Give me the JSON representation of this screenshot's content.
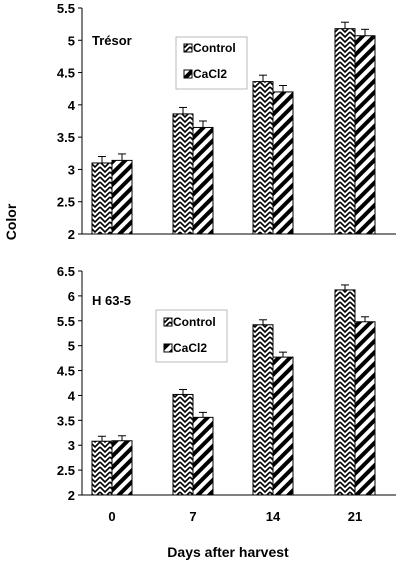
{
  "chart_data": [
    {
      "type": "bar",
      "panel_label": "Trésor",
      "categories": [
        "0",
        "7",
        "14",
        "21"
      ],
      "series": [
        {
          "name": "Control",
          "values": [
            3.1,
            3.86,
            4.36,
            5.18
          ],
          "errors": [
            0.1,
            0.1,
            0.1,
            0.1
          ]
        },
        {
          "name": "CaCl2",
          "values": [
            3.14,
            3.65,
            4.2,
            5.07
          ],
          "errors": [
            0.1,
            0.1,
            0.1,
            0.1
          ]
        }
      ],
      "ylim": [
        2,
        5.5
      ],
      "yticks": [
        "2",
        "2.5",
        "3",
        "3.5",
        "4",
        "4.5",
        "5",
        "5.5"
      ],
      "legend": "top-center"
    },
    {
      "type": "bar",
      "panel_label": "H 63-5",
      "categories": [
        "0",
        "7",
        "14",
        "21"
      ],
      "series": [
        {
          "name": "Control",
          "values": [
            3.08,
            4.02,
            5.42,
            6.12
          ],
          "errors": [
            0.1,
            0.1,
            0.1,
            0.1
          ]
        },
        {
          "name": "CaCl2",
          "values": [
            3.09,
            3.56,
            4.77,
            5.48
          ],
          "errors": [
            0.1,
            0.1,
            0.1,
            0.1
          ]
        }
      ],
      "ylim": [
        2,
        6.5
      ],
      "yticks": [
        "2",
        "2.5",
        "3",
        "3.5",
        "4",
        "4.5",
        "5",
        "5.5",
        "6",
        "6.5"
      ],
      "legend": "top-center"
    }
  ],
  "ylabel": "Color",
  "xlabel": "Days after harvest"
}
